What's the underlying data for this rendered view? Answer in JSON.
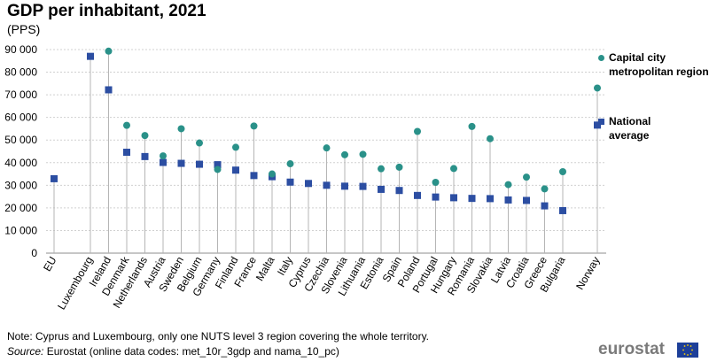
{
  "title": "GDP per inhabitant, 2021",
  "subtitle": "(PPS)",
  "chart_data": {
    "type": "scatter",
    "categories": [
      "EU",
      "Luxembourg",
      "Ireland",
      "Denmark",
      "Netherlands",
      "Austria",
      "Sweden",
      "Belgium",
      "Germany",
      "Finland",
      "France",
      "Malta",
      "Italy",
      "Cyprus",
      "Czechia",
      "Slovenia",
      "Lithuania",
      "Estonia",
      "Spain",
      "Poland",
      "Portugal",
      "Hungary",
      "Romania",
      "Slovakia",
      "Latvia",
      "Croatia",
      "Greece",
      "Bulgaria",
      "Norway"
    ],
    "series": [
      {
        "name": "Capital city metropolitan region",
        "marker": "circle",
        "color": "#2a9189",
        "values": [
          null,
          null,
          89300,
          56500,
          52000,
          43000,
          55000,
          48700,
          37000,
          46800,
          56200,
          35000,
          39500,
          null,
          46500,
          43500,
          43700,
          37300,
          38000,
          53800,
          31300,
          37400,
          56000,
          50600,
          30300,
          33600,
          28400,
          36000,
          73000
        ]
      },
      {
        "name": "National average",
        "marker": "square",
        "color": "#2c4ea2",
        "values": [
          32900,
          87000,
          72200,
          44600,
          42700,
          40100,
          39700,
          39300,
          39100,
          36700,
          34300,
          33800,
          31400,
          30800,
          30000,
          29600,
          29500,
          28200,
          27700,
          25500,
          24800,
          24500,
          24200,
          24100,
          23500,
          23300,
          20900,
          18800,
          56600
        ]
      }
    ],
    "ylim": [
      0,
      90000
    ],
    "yticks": [
      0,
      10000,
      20000,
      30000,
      40000,
      50000,
      60000,
      70000,
      80000,
      90000
    ],
    "ytick_labels": [
      "0",
      "10 000",
      "20 000",
      "30 000",
      "40 000",
      "50 000",
      "60 000",
      "70 000",
      "80 000",
      "90 000"
    ],
    "xlabel": "",
    "ylabel": "",
    "legend_position": "right"
  },
  "legend": {
    "capital_label": "Capital city metropolitan region",
    "national_label": "National average"
  },
  "footer": {
    "note": "Note: Cyprus and Luxembourg, only one NUTS level 3 region covering the whole territory.",
    "source_label": "Source:",
    "source_text": " Eurostat (online data codes: met_10r_3gdp and nama_10_pc)",
    "logo": "eurostat"
  }
}
